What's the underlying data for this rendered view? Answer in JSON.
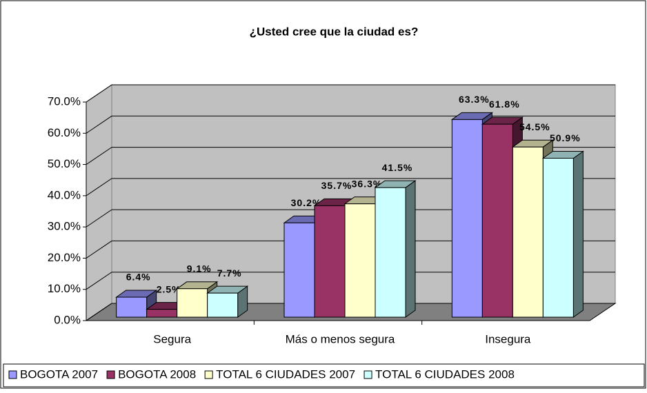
{
  "chart_data": {
    "type": "bar3d",
    "title": "¿Usted cree que la ciudad es?",
    "categories": [
      "Segura",
      "Más o menos segura",
      "Insegura"
    ],
    "series": [
      {
        "name": "BOGOTA 2007",
        "color": "#9999ff",
        "values": [
          6.4,
          30.2,
          63.3
        ],
        "value_labels": [
          "6.4%",
          "30.2%",
          "63.3%"
        ]
      },
      {
        "name": "BOGOTA 2008",
        "color": "#993366",
        "values": [
          2.5,
          35.7,
          61.8
        ],
        "value_labels": [
          "2.5%",
          "35.7%",
          "61.8%"
        ]
      },
      {
        "name": "TOTAL 6 CIUDADES 2007",
        "color": "#ffffcc",
        "values": [
          9.1,
          36.3,
          54.5
        ],
        "value_labels": [
          "9.1%",
          "36.3%",
          "54.5%"
        ]
      },
      {
        "name": "TOTAL 6 CIUDADES 2008",
        "color": "#ccffff",
        "values": [
          7.7,
          41.5,
          50.9
        ],
        "value_labels": [
          "7.7%",
          "41.5%",
          "50.9%"
        ]
      }
    ],
    "ylim": [
      0,
      70
    ],
    "yticks": [
      {
        "value": 0,
        "label": "0.0%"
      },
      {
        "value": 10,
        "label": "10.0%"
      },
      {
        "value": 20,
        "label": "20.0%"
      },
      {
        "value": 30,
        "label": "30.0%"
      },
      {
        "value": 40,
        "label": "40.0%"
      },
      {
        "value": 50,
        "label": "50.0%"
      },
      {
        "value": 60,
        "label": "60.0%"
      },
      {
        "value": 70,
        "label": "70.0%"
      }
    ],
    "grid": true,
    "legend": "bottom"
  }
}
